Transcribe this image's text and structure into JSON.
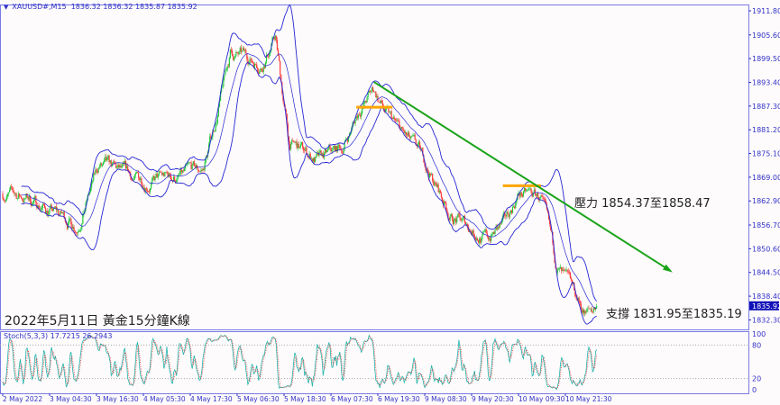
{
  "header": {
    "symbol": "XAUUSD#,M15",
    "ohlc": "1836.32 1836.32 1835.87 1835.92"
  },
  "stoch_header": "Stoch(5,3,3) 17.7215 26.2943",
  "annotations": {
    "title": "2022年5月11日 黃金15分鐘K線",
    "resistance": "壓力 1854.37至1858.47",
    "support": "支撐 1831.95至1835.19"
  },
  "colors": {
    "bull": "#27c93f",
    "bear": "#ff3b3b",
    "bands": "#2626d6",
    "axis": "#3232c8",
    "frame": "#7a7ae6",
    "trend": "#1aa31a",
    "level": "#ffa500",
    "stoch_k": "#20b2aa",
    "stoch_d": "#ff3030"
  },
  "chart_data": {
    "type": "candlestick",
    "indicators": [
      "Bollinger Bands",
      "Stochastic(5,3,3)"
    ],
    "price_axis": {
      "ticks": [
        1911.8,
        1905.6,
        1899.5,
        1893.4,
        1887.3,
        1881.2,
        1875.1,
        1869.0,
        1862.9,
        1856.7,
        1850.6,
        1844.5,
        1838.4,
        1832.3
      ],
      "current": "1835.92"
    },
    "stoch_axis": {
      "ticks": [
        "100",
        "80",
        "20",
        "0"
      ]
    },
    "time_axis": {
      "ticks": [
        "2 May 2022",
        "3 May 04:30",
        "3 May 16:30",
        "4 May 05:30",
        "4 May 17:30",
        "5 May 06:30",
        "5 May 18:30",
        "6 May 07:30",
        "6 May 19:30",
        "9 May 08:30",
        "9 May 20:30",
        "10 May 09:30",
        "10 May 21:30"
      ]
    },
    "close_path_bar_price": [
      [
        0,
        1864.8
      ],
      [
        25,
        1863.7
      ],
      [
        76,
        1856.7
      ],
      [
        99,
        1871.8
      ],
      [
        136,
        1868
      ],
      [
        182,
        1869
      ],
      [
        205,
        1870.6
      ],
      [
        219,
        1884.5
      ],
      [
        233,
        1900.7
      ],
      [
        265,
        1898.4
      ],
      [
        279,
        1905.3
      ],
      [
        293,
        1877.5
      ],
      [
        325,
        1873
      ],
      [
        348,
        1876.4
      ],
      [
        366,
        1886.8
      ],
      [
        380,
        1891.4
      ],
      [
        394,
        1884.5
      ],
      [
        431,
        1873
      ],
      [
        459,
        1859
      ],
      [
        496,
        1853.2
      ],
      [
        514,
        1856.7
      ],
      [
        528,
        1864.8
      ],
      [
        551,
        1863.7
      ],
      [
        565,
        1847.5
      ],
      [
        579,
        1840.5
      ],
      [
        597,
        1833.6
      ],
      [
        608,
        1835.92
      ]
    ],
    "trendline": {
      "from": [
        380,
        1893.5
      ],
      "to": [
        683,
        1845.0
      ]
    },
    "levels": [
      {
        "from_bar": 362,
        "to_bar": 399,
        "price": 1887.0
      },
      {
        "from_bar": 512,
        "to_bar": 551,
        "price": 1866.8
      }
    ]
  }
}
